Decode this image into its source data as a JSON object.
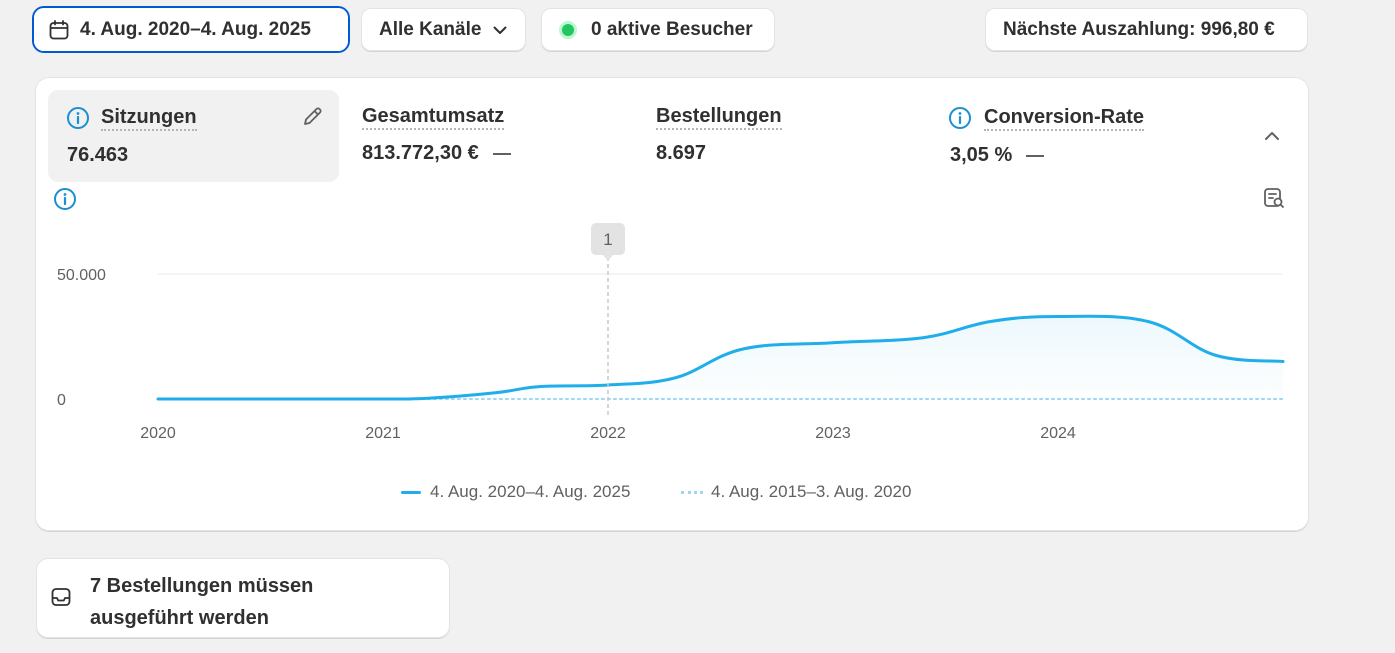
{
  "toolbar": {
    "date_range": "4. Aug. 2020–4. Aug. 2025",
    "channels": "Alle Kanäle",
    "visitors": "0 aktive Besucher",
    "payout": "Nächste Auszahlung: 996,80 €"
  },
  "metrics": [
    {
      "label": "Sitzungen",
      "value": "76.463"
    },
    {
      "label": "Gesamtumsatz",
      "value": "813.772,30 €"
    },
    {
      "label": "Bestellungen",
      "value": "8.697"
    },
    {
      "label": "Conversion-Rate",
      "value": "3,05 %"
    }
  ],
  "chart_data": {
    "type": "line",
    "title": "Sitzungen",
    "x_ticks": [
      "2020",
      "2021",
      "2022",
      "2023",
      "2024"
    ],
    "y_ticks": [
      "50.000",
      "0"
    ],
    "ylim": [
      0,
      50000
    ],
    "annotation": {
      "label": "1",
      "x": 2022.0
    },
    "series": [
      {
        "name": "4. Aug. 2020–4. Aug. 2025",
        "style": "solid",
        "color": "#1faeea",
        "x": [
          2020.0,
          2020.5,
          2021.0,
          2021.2,
          2021.5,
          2021.7,
          2022.0,
          2022.3,
          2022.6,
          2023.0,
          2023.4,
          2023.7,
          2024.0,
          2024.4,
          2024.7,
          2025.0
        ],
        "y": [
          0,
          0,
          0,
          300,
          2500,
          5000,
          5600,
          8500,
          20000,
          22500,
          24500,
          31000,
          33000,
          31000,
          17500,
          15000
        ]
      },
      {
        "name": "4. Aug. 2015–3. Aug. 2020",
        "style": "dotted",
        "color": "#9fd7f2",
        "x": [
          2020.0,
          2025.0
        ],
        "y": [
          0,
          0
        ]
      }
    ]
  },
  "tasks": {
    "line1": "7 Bestellungen müssen",
    "line2": "ausgeführt werden"
  }
}
